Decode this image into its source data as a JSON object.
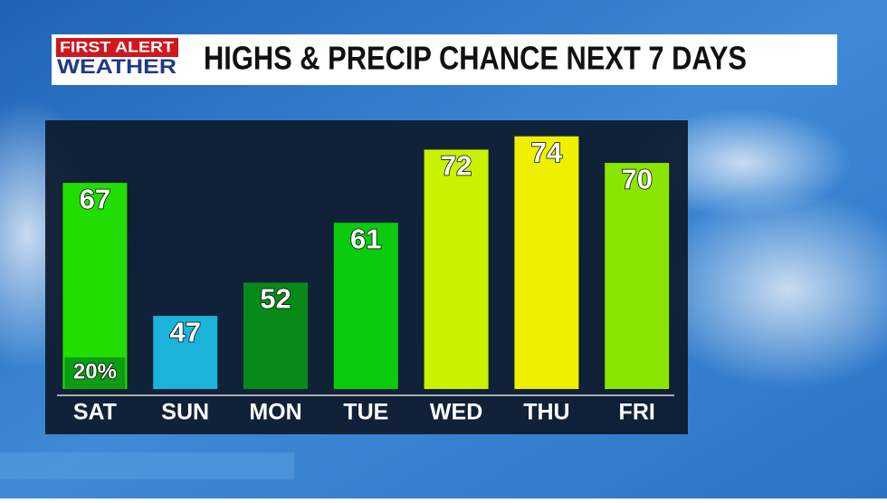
{
  "brand": {
    "line1": "FIRST ALERT",
    "line2": "WEATHER"
  },
  "chart_data": {
    "type": "bar",
    "title": "HIGHS & PRECIP CHANCE NEXT 7 DAYS",
    "categories": [
      "SAT",
      "SUN",
      "MON",
      "TUE",
      "WED",
      "THU",
      "FRI"
    ],
    "values": [
      67,
      47,
      52,
      61,
      72,
      74,
      70
    ],
    "colors": [
      "#22de00",
      "#1bb3d9",
      "#078a17",
      "#0bcb0e",
      "#c9f200",
      "#eef000",
      "#8ae600"
    ],
    "precip_chance": {
      "values": [
        20,
        null,
        null,
        null,
        null,
        null,
        null
      ],
      "value_labels": [
        "20%",
        null,
        null,
        null,
        null,
        null,
        null
      ],
      "color": "#0b9d12"
    },
    "ylim": [
      36,
      76
    ]
  }
}
